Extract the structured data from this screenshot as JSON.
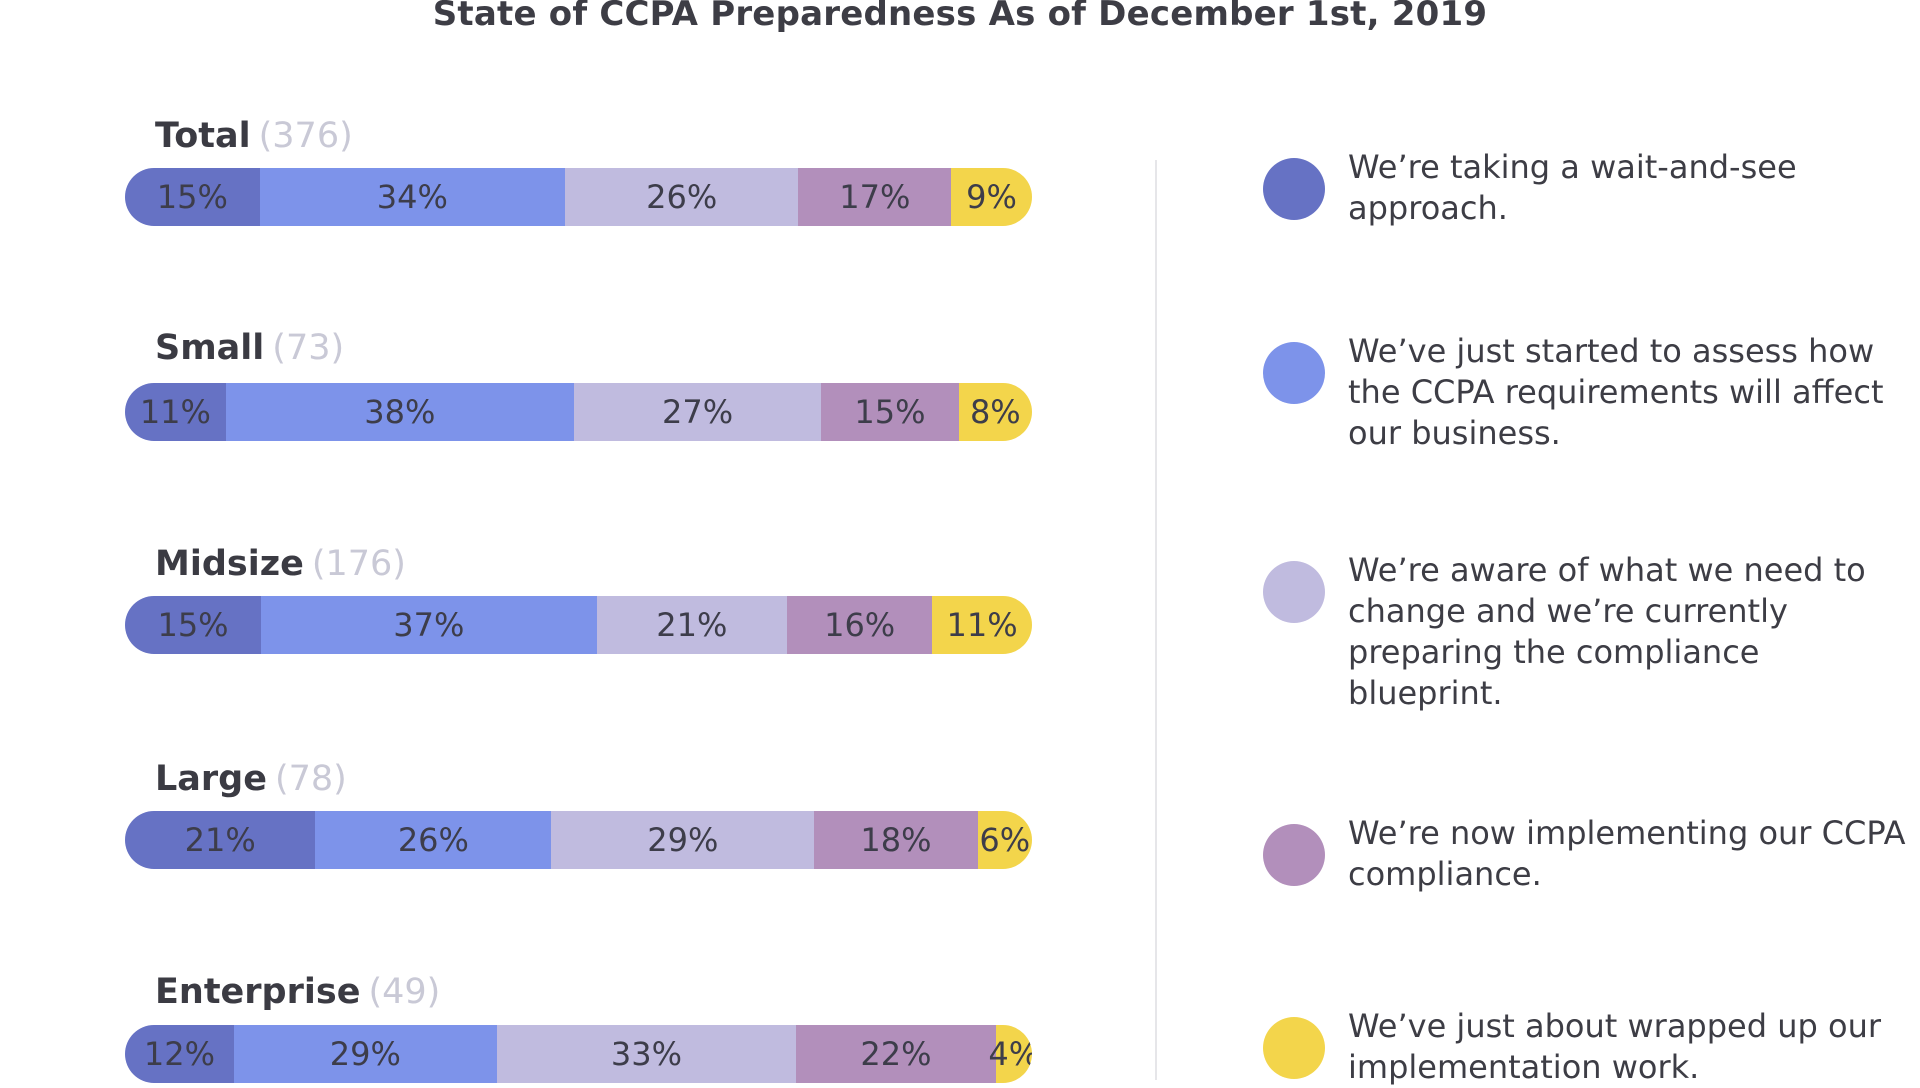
{
  "chart_data": {
    "type": "bar",
    "orientation": "horizontal",
    "stacked": true,
    "title": "State of CCPA Preparedness As of December 1st, 2019",
    "categories": [
      "Total",
      "Small",
      "Midsize",
      "Large",
      "Enterprise"
    ],
    "category_counts": [
      "(376)",
      "(73)",
      "(176)",
      "(78)",
      "(49)"
    ],
    "series": [
      {
        "name": "We’re taking a wait-and-see approach.",
        "color": "#6672c4",
        "values": [
          15,
          11,
          15,
          21,
          12
        ]
      },
      {
        "name": "We’ve just started to assess how the CCPA requirements will affect our business.",
        "color": "#7d93ea",
        "values": [
          34,
          38,
          37,
          26,
          29
        ]
      },
      {
        "name": "We’re aware of what we need to change and we’re currently preparing the compliance blueprint.",
        "color": "#c0bbdf",
        "values": [
          26,
          27,
          21,
          29,
          33
        ]
      },
      {
        "name": "We’re now implementing our CCPA compliance.",
        "color": "#b28fbb",
        "values": [
          17,
          15,
          16,
          18,
          22
        ]
      },
      {
        "name": "We’ve just about wrapped up our implementation work.",
        "color": "#f3d54b",
        "values": [
          9,
          8,
          11,
          6,
          4
        ]
      }
    ],
    "value_suffix": "%",
    "legend_position": "right"
  }
}
